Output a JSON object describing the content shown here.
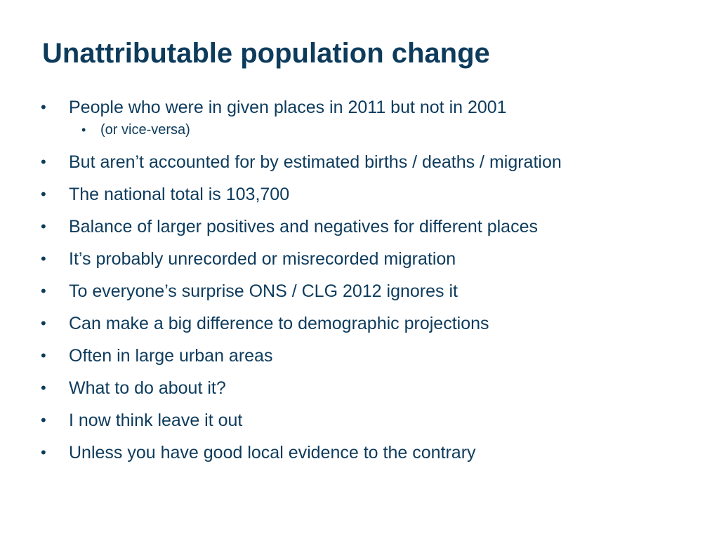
{
  "slide": {
    "title": "Unattributable population change",
    "bullet_marker": "•",
    "bullets": [
      "People who were in given places in 2011 but not in 2001",
      "But aren’t accounted for by estimated births / deaths / migration",
      "The national total is 103,700",
      "Balance of larger positives and negatives for different places",
      "It’s probably unrecorded or misrecorded migration",
      "To everyone’s surprise ONS / CLG 2012 ignores it",
      "Can make a big difference to demographic projections",
      "Often in large urban areas",
      "What to do about it?",
      "I now think leave it out",
      "Unless you have good local evidence to the contrary"
    ],
    "sub_bullets": [
      "(or vice-versa)"
    ]
  },
  "colors": {
    "text": "#0d3b5c",
    "background": "#ffffff"
  }
}
